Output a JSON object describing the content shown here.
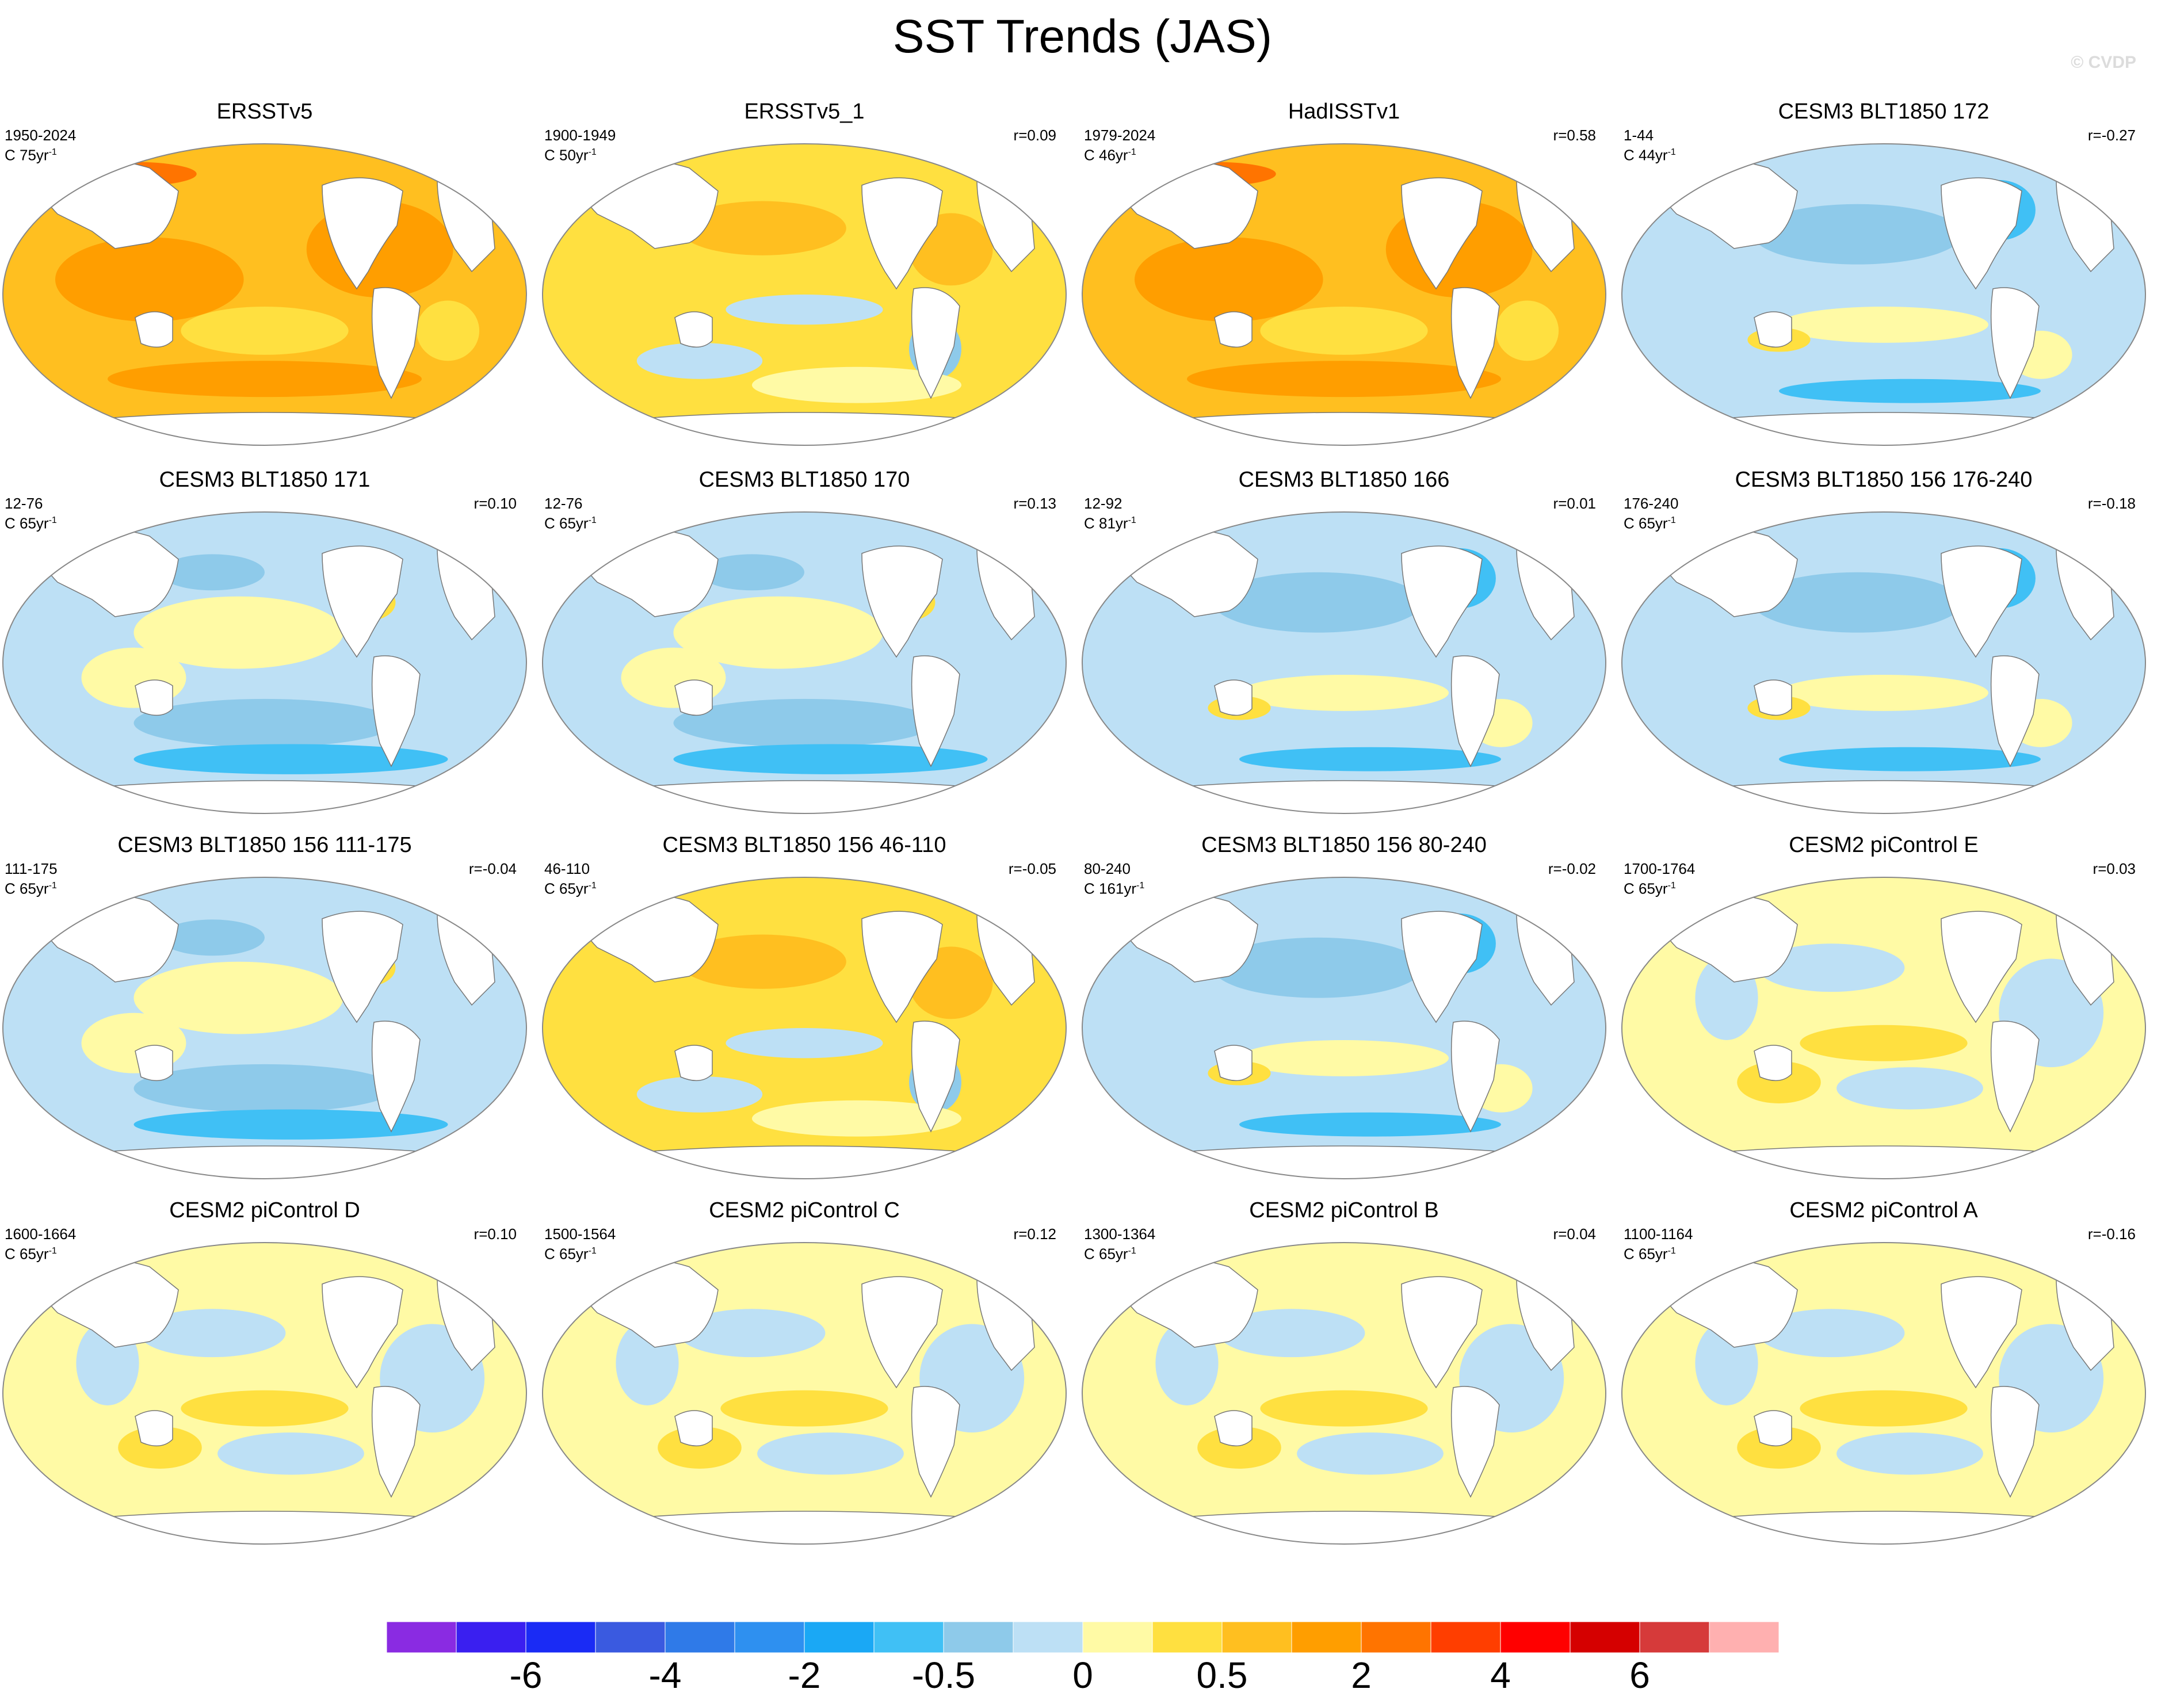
{
  "title": "SST Trends (JAS)",
  "watermark": "© CVDP",
  "panels": [
    {
      "title": "ERSSTv5",
      "years": "1950-2024",
      "length": "C 75yr",
      "corr": "",
      "scheme": 0
    },
    {
      "title": "ERSSTv5_1",
      "years": "1900-1949",
      "length": "C 50yr",
      "corr": "r=0.09",
      "scheme": 1
    },
    {
      "title": "HadISSTv1",
      "years": "1979-2024",
      "length": "C 46yr",
      "corr": "r=0.58",
      "scheme": 0
    },
    {
      "title": "CESM3 BLT1850 172",
      "years": "1-44",
      "length": "C 44yr",
      "corr": "r=-0.27",
      "scheme": 3
    },
    {
      "title": "CESM3 BLT1850 171",
      "years": "12-76",
      "length": "C 65yr",
      "corr": "r=0.10",
      "scheme": 2
    },
    {
      "title": "CESM3 BLT1850 170",
      "years": "12-76",
      "length": "C 65yr",
      "corr": "r=0.13",
      "scheme": 2
    },
    {
      "title": "CESM3 BLT1850 166",
      "years": "12-92",
      "length": "C 81yr",
      "corr": "r=0.01",
      "scheme": 3
    },
    {
      "title": "CESM3 BLT1850 156 176-240",
      "years": "176-240",
      "length": "C 65yr",
      "corr": "r=-0.18",
      "scheme": 3
    },
    {
      "title": "CESM3 BLT1850 156 111-175",
      "years": "111-175",
      "length": "C 65yr",
      "corr": "r=-0.04",
      "scheme": 2
    },
    {
      "title": "CESM3 BLT1850 156 46-110",
      "years": "46-110",
      "length": "C 65yr",
      "corr": "r=-0.05",
      "scheme": 1
    },
    {
      "title": "CESM3 BLT1850 156 80-240",
      "years": "80-240",
      "length": "C 161yr",
      "corr": "r=-0.02",
      "scheme": 3
    },
    {
      "title": "CESM2 piControl E",
      "years": "1700-1764",
      "length": "C 65yr",
      "corr": "r=0.03",
      "scheme": 4
    },
    {
      "title": "CESM2 piControl D",
      "years": "1600-1664",
      "length": "C 65yr",
      "corr": "r=0.10",
      "scheme": 4
    },
    {
      "title": "CESM2 piControl C",
      "years": "1500-1564",
      "length": "C 65yr",
      "corr": "r=0.12",
      "scheme": 4
    },
    {
      "title": "CESM2 piControl B",
      "years": "1300-1364",
      "length": "C 65yr",
      "corr": "r=0.04",
      "scheme": 4
    },
    {
      "title": "CESM2 piControl A",
      "years": "1100-1164",
      "length": "C 65yr",
      "corr": "r=-0.16",
      "scheme": 4
    }
  ],
  "colorbar": {
    "colors": [
      "#8a2be2",
      "#3a1ff0",
      "#1a2bf5",
      "#3a5ae0",
      "#2f7ae8",
      "#2e90f0",
      "#1aa8f5",
      "#40c0f5",
      "#8ecaea",
      "#bde0f5",
      "#fffaa5",
      "#ffe040",
      "#ffbf20",
      "#ff9e00",
      "#ff7400",
      "#ff3e00",
      "#ff0000",
      "#d50000",
      "#d63a3a",
      "#ffb0b0"
    ],
    "labels": [
      "-6",
      "-4",
      "-2",
      "-0.5",
      "0",
      "0.5",
      "2",
      "4",
      "6"
    ]
  }
}
